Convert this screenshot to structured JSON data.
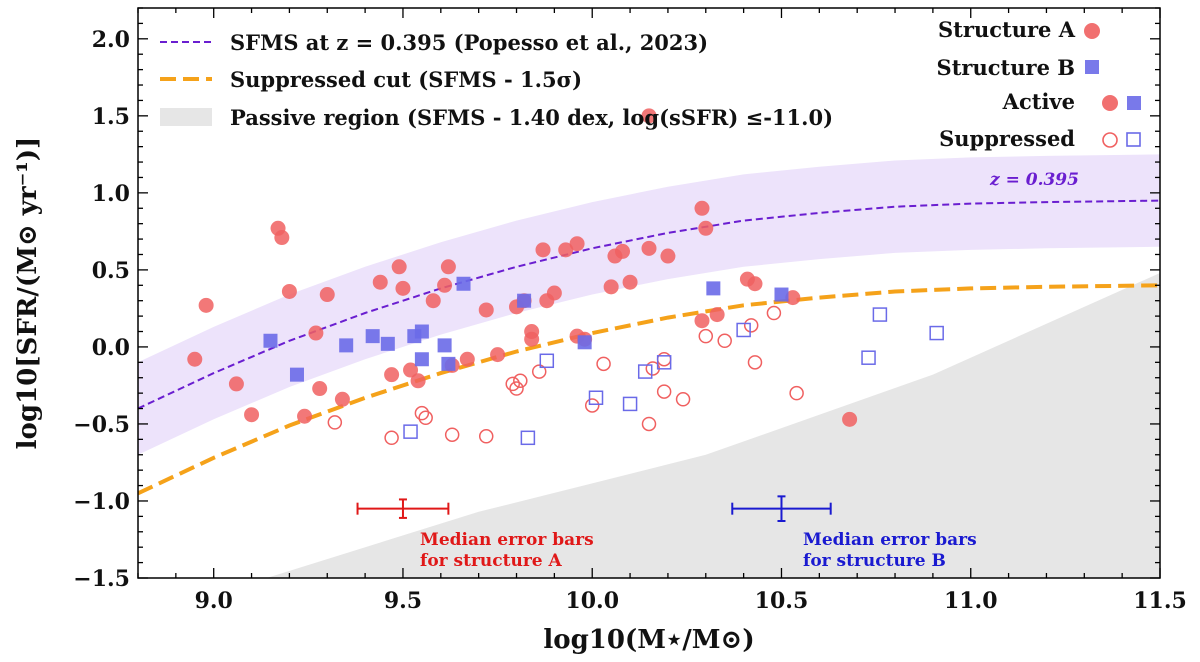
{
  "chart_data": {
    "type": "scatter",
    "xlabel": "log10(M⋆/M⊙)",
    "ylabel": "log10[SFR/(M⊙ yr⁻¹)]",
    "xlim": [
      8.8,
      11.5
    ],
    "ylim": [
      -1.5,
      2.2
    ],
    "xticks": [
      "9.0",
      "9.5",
      "10.0",
      "10.5",
      "11.0",
      "11.5"
    ],
    "yticks": [
      "−1.5",
      "−1.0",
      "−0.5",
      "0.0",
      "0.5",
      "1.0",
      "1.5",
      "2.0"
    ],
    "colors": {
      "red": "#f06060",
      "blue": "#6a6ae8",
      "sfms": "#6a1ed0",
      "cut": "#f5a21a",
      "band": "#ede3fb",
      "passive": "#e6e6e6",
      "err_red": "#e01818",
      "err_blue": "#1a1ad0"
    },
    "sfms": {
      "label": "SFMS at z = 0.395 (Popesso et al., 2023)",
      "annotation": "z = 0.395",
      "x": [
        8.8,
        9.0,
        9.2,
        9.4,
        9.6,
        9.8,
        10.0,
        10.2,
        10.4,
        10.6,
        10.8,
        11.0,
        11.2,
        11.5
      ],
      "y": [
        -0.4,
        -0.17,
        0.04,
        0.22,
        0.38,
        0.52,
        0.64,
        0.74,
        0.82,
        0.87,
        0.91,
        0.93,
        0.94,
        0.95
      ],
      "band_halfwidth": 0.3
    },
    "cut": {
      "label": "Suppressed cut (SFMS - 1.5σ)",
      "x": [
        8.8,
        9.0,
        9.2,
        9.4,
        9.6,
        9.8,
        10.0,
        10.2,
        10.4,
        10.6,
        10.8,
        11.0,
        11.2,
        11.5
      ],
      "y": [
        -0.95,
        -0.72,
        -0.51,
        -0.33,
        -0.17,
        -0.03,
        0.09,
        0.19,
        0.27,
        0.32,
        0.36,
        0.38,
        0.39,
        0.4
      ]
    },
    "passive": {
      "label": "Passive region (SFMS - 1.40 dex, log(sSFR) ≤-11.0)",
      "x": [
        9.14,
        9.7,
        10.3,
        10.9,
        11.5
      ],
      "y": [
        -1.5,
        -1.07,
        -0.7,
        -0.18,
        0.48
      ]
    },
    "legend": {
      "structure_a": "Structure A",
      "structure_b": "Structure B",
      "active": "Active",
      "suppressed": "Suppressed"
    },
    "series": [
      {
        "name": "Structure A, Active",
        "points": [
          [
            8.95,
            -0.08
          ],
          [
            8.98,
            0.27
          ],
          [
            9.06,
            -0.24
          ],
          [
            9.1,
            -0.44
          ],
          [
            9.17,
            0.77
          ],
          [
            9.18,
            0.71
          ],
          [
            9.2,
            0.36
          ],
          [
            9.24,
            -0.45
          ],
          [
            9.27,
            0.09
          ],
          [
            9.28,
            -0.27
          ],
          [
            9.3,
            0.34
          ],
          [
            9.34,
            -0.34
          ],
          [
            9.44,
            0.42
          ],
          [
            9.47,
            -0.18
          ],
          [
            9.49,
            0.52
          ],
          [
            9.5,
            0.38
          ],
          [
            9.52,
            -0.15
          ],
          [
            9.54,
            -0.22
          ],
          [
            9.58,
            0.3
          ],
          [
            9.61,
            0.4
          ],
          [
            9.62,
            0.52
          ],
          [
            9.63,
            -0.12
          ],
          [
            9.67,
            -0.08
          ],
          [
            9.72,
            0.24
          ],
          [
            9.75,
            -0.05
          ],
          [
            9.8,
            0.26
          ],
          [
            9.82,
            0.3
          ],
          [
            9.84,
            0.1
          ],
          [
            9.84,
            0.05
          ],
          [
            9.87,
            0.63
          ],
          [
            9.88,
            0.3
          ],
          [
            9.9,
            0.35
          ],
          [
            9.93,
            0.63
          ],
          [
            9.96,
            0.67
          ],
          [
            9.96,
            0.07
          ],
          [
            9.98,
            0.05
          ],
          [
            10.05,
            0.39
          ],
          [
            10.06,
            0.59
          ],
          [
            10.08,
            0.62
          ],
          [
            10.1,
            0.42
          ],
          [
            10.15,
            0.64
          ],
          [
            10.15,
            1.5
          ],
          [
            10.2,
            0.59
          ],
          [
            10.29,
            0.17
          ],
          [
            10.29,
            0.9
          ],
          [
            10.3,
            0.77
          ],
          [
            10.33,
            0.21
          ],
          [
            10.41,
            0.44
          ],
          [
            10.43,
            0.41
          ],
          [
            10.53,
            0.32
          ],
          [
            10.68,
            -0.47
          ]
        ]
      },
      {
        "name": "Structure A, Suppressed",
        "points": [
          [
            9.32,
            -0.49
          ],
          [
            9.47,
            -0.59
          ],
          [
            9.55,
            -0.43
          ],
          [
            9.56,
            -0.46
          ],
          [
            9.63,
            -0.57
          ],
          [
            9.72,
            -0.58
          ],
          [
            9.79,
            -0.24
          ],
          [
            9.8,
            -0.27
          ],
          [
            9.81,
            -0.22
          ],
          [
            9.86,
            -0.16
          ],
          [
            10.0,
            -0.38
          ],
          [
            10.03,
            -0.11
          ],
          [
            10.15,
            -0.5
          ],
          [
            10.16,
            -0.14
          ],
          [
            10.19,
            -0.08
          ],
          [
            10.19,
            -0.29
          ],
          [
            10.24,
            -0.34
          ],
          [
            10.3,
            0.07
          ],
          [
            10.35,
            0.04
          ],
          [
            10.42,
            0.14
          ],
          [
            10.43,
            -0.1
          ],
          [
            10.48,
            0.22
          ],
          [
            10.54,
            -0.3
          ]
        ]
      },
      {
        "name": "Structure B, Active",
        "points": [
          [
            9.15,
            0.04
          ],
          [
            9.22,
            -0.18
          ],
          [
            9.35,
            0.01
          ],
          [
            9.42,
            0.07
          ],
          [
            9.46,
            0.02
          ],
          [
            9.53,
            0.07
          ],
          [
            9.55,
            -0.08
          ],
          [
            9.55,
            0.1
          ],
          [
            9.61,
            0.01
          ],
          [
            9.62,
            -0.11
          ],
          [
            9.66,
            0.41
          ],
          [
            9.82,
            0.3
          ],
          [
            9.98,
            0.03
          ],
          [
            10.32,
            0.38
          ],
          [
            10.5,
            0.34
          ]
        ]
      },
      {
        "name": "Structure B, Suppressed",
        "points": [
          [
            9.52,
            -0.55
          ],
          [
            9.83,
            -0.59
          ],
          [
            9.88,
            -0.09
          ],
          [
            10.01,
            -0.33
          ],
          [
            10.1,
            -0.37
          ],
          [
            10.14,
            -0.16
          ],
          [
            10.19,
            -0.1
          ],
          [
            10.4,
            0.11
          ],
          [
            10.73,
            -0.07
          ],
          [
            10.76,
            0.21
          ],
          [
            10.91,
            0.09
          ]
        ]
      }
    ],
    "error_bars": [
      {
        "name": "structure A",
        "x": 9.5,
        "y": -1.05,
        "x_lo": 9.38,
        "x_hi": 9.62,
        "y_lo": -0.99,
        "y_hi": -1.11,
        "label_line1": "Median error bars",
        "label_line2": "for structure A"
      },
      {
        "name": "structure B",
        "x": 10.5,
        "y": -1.05,
        "x_lo": 10.37,
        "x_hi": 10.63,
        "y_lo": -0.97,
        "y_hi": -1.13,
        "label_line1": "Median error bars",
        "label_line2": "for structure B"
      }
    ]
  }
}
